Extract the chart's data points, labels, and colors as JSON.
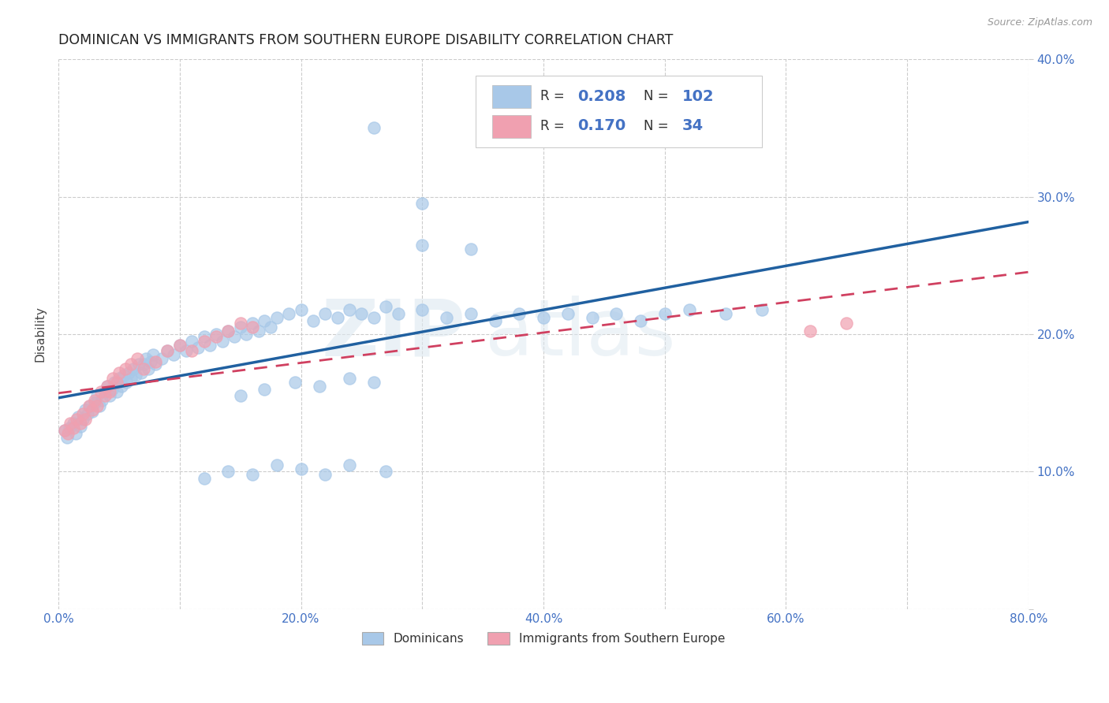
{
  "title": "DOMINICAN VS IMMIGRANTS FROM SOUTHERN EUROPE DISABILITY CORRELATION CHART",
  "source": "Source: ZipAtlas.com",
  "ylabel": "Disability",
  "xlim": [
    0.0,
    0.8
  ],
  "ylim": [
    0.0,
    0.4
  ],
  "xticks": [
    0.0,
    0.1,
    0.2,
    0.3,
    0.4,
    0.5,
    0.6,
    0.7,
    0.8
  ],
  "xticklabels": [
    "0.0%",
    "",
    "20.0%",
    "",
    "40.0%",
    "",
    "60.0%",
    "",
    "80.0%"
  ],
  "yticks": [
    0.0,
    0.1,
    0.2,
    0.3,
    0.4
  ],
  "yticklabels_right": [
    "",
    "10.0%",
    "20.0%",
    "30.0%",
    "40.0%"
  ],
  "dominicans_R": 0.208,
  "dominicans_N": 102,
  "southern_europe_R": 0.17,
  "southern_europe_N": 34,
  "legend_label_1": "Dominicans",
  "legend_label_2": "Immigrants from Southern Europe",
  "color_dominicans": "#a8c8e8",
  "color_southern_europe": "#f0a0b0",
  "trendline_color_dominicans": "#2060a0",
  "trendline_color_southern_europe": "#d04060",
  "background_color": "#ffffff",
  "watermark_zip": "ZIP",
  "watermark_atlas": "atlas",
  "dom_x": [
    0.005,
    0.007,
    0.009,
    0.012,
    0.014,
    0.016,
    0.018,
    0.02,
    0.022,
    0.024,
    0.026,
    0.028,
    0.03,
    0.032,
    0.034,
    0.036,
    0.038,
    0.04,
    0.042,
    0.044,
    0.046,
    0.048,
    0.05,
    0.052,
    0.054,
    0.056,
    0.058,
    0.06,
    0.062,
    0.064,
    0.066,
    0.068,
    0.07,
    0.072,
    0.074,
    0.076,
    0.078,
    0.08,
    0.085,
    0.09,
    0.095,
    0.1,
    0.105,
    0.11,
    0.115,
    0.12,
    0.125,
    0.13,
    0.135,
    0.14,
    0.145,
    0.15,
    0.155,
    0.16,
    0.165,
    0.17,
    0.175,
    0.18,
    0.19,
    0.2,
    0.21,
    0.22,
    0.23,
    0.24,
    0.25,
    0.26,
    0.27,
    0.28,
    0.3,
    0.32,
    0.34,
    0.36,
    0.38,
    0.4,
    0.42,
    0.44,
    0.46,
    0.48,
    0.5,
    0.52,
    0.55,
    0.58,
    0.15,
    0.17,
    0.195,
    0.215,
    0.24,
    0.26,
    0.12,
    0.14,
    0.16,
    0.18,
    0.2,
    0.22,
    0.24,
    0.27,
    0.3,
    0.34,
    0.26,
    0.3
  ],
  "dom_y": [
    0.13,
    0.125,
    0.132,
    0.135,
    0.128,
    0.14,
    0.133,
    0.138,
    0.145,
    0.142,
    0.148,
    0.144,
    0.15,
    0.155,
    0.148,
    0.152,
    0.158,
    0.162,
    0.155,
    0.16,
    0.165,
    0.158,
    0.168,
    0.162,
    0.17,
    0.165,
    0.172,
    0.168,
    0.175,
    0.17,
    0.178,
    0.172,
    0.178,
    0.182,
    0.175,
    0.18,
    0.185,
    0.178,
    0.182,
    0.188,
    0.185,
    0.192,
    0.188,
    0.195,
    0.19,
    0.198,
    0.192,
    0.2,
    0.195,
    0.202,
    0.198,
    0.205,
    0.2,
    0.208,
    0.202,
    0.21,
    0.205,
    0.212,
    0.215,
    0.218,
    0.21,
    0.215,
    0.212,
    0.218,
    0.215,
    0.212,
    0.22,
    0.215,
    0.218,
    0.212,
    0.215,
    0.21,
    0.215,
    0.212,
    0.215,
    0.212,
    0.215,
    0.21,
    0.215,
    0.218,
    0.215,
    0.218,
    0.155,
    0.16,
    0.165,
    0.162,
    0.168,
    0.165,
    0.095,
    0.1,
    0.098,
    0.105,
    0.102,
    0.098,
    0.105,
    0.1,
    0.265,
    0.262,
    0.35,
    0.295
  ],
  "se_x": [
    0.005,
    0.008,
    0.01,
    0.012,
    0.015,
    0.018,
    0.02,
    0.022,
    0.025,
    0.028,
    0.03,
    0.032,
    0.035,
    0.038,
    0.04,
    0.042,
    0.045,
    0.048,
    0.05,
    0.055,
    0.06,
    0.065,
    0.07,
    0.08,
    0.09,
    0.1,
    0.11,
    0.12,
    0.13,
    0.14,
    0.15,
    0.16,
    0.62,
    0.65
  ],
  "se_y": [
    0.13,
    0.128,
    0.135,
    0.132,
    0.138,
    0.135,
    0.142,
    0.138,
    0.148,
    0.145,
    0.152,
    0.148,
    0.158,
    0.155,
    0.162,
    0.158,
    0.168,
    0.165,
    0.172,
    0.175,
    0.178,
    0.182,
    0.175,
    0.18,
    0.188,
    0.192,
    0.188,
    0.195,
    0.198,
    0.202,
    0.208,
    0.205,
    0.202,
    0.208
  ]
}
